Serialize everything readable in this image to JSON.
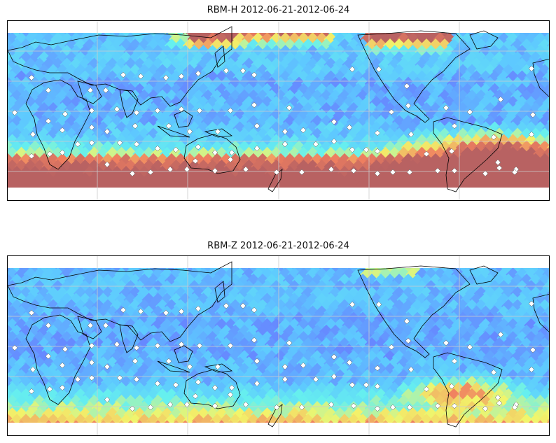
{
  "panels": [
    {
      "title": "RBM-H 2012-06-21-2012-06-24",
      "variant": "H"
    },
    {
      "title": "RBM-Z 2012-06-21-2012-06-24",
      "variant": "Z"
    }
  ],
  "colors": {
    "low": "#6a6cff",
    "mid_low": "#5ec8ff",
    "mid": "#66f0ee",
    "mid_high": "#f2f56a",
    "high": "#f08060",
    "very_high": "#b86262",
    "coast": "#000000",
    "grid": "#cccccc",
    "station": "#ffffff"
  }
}
